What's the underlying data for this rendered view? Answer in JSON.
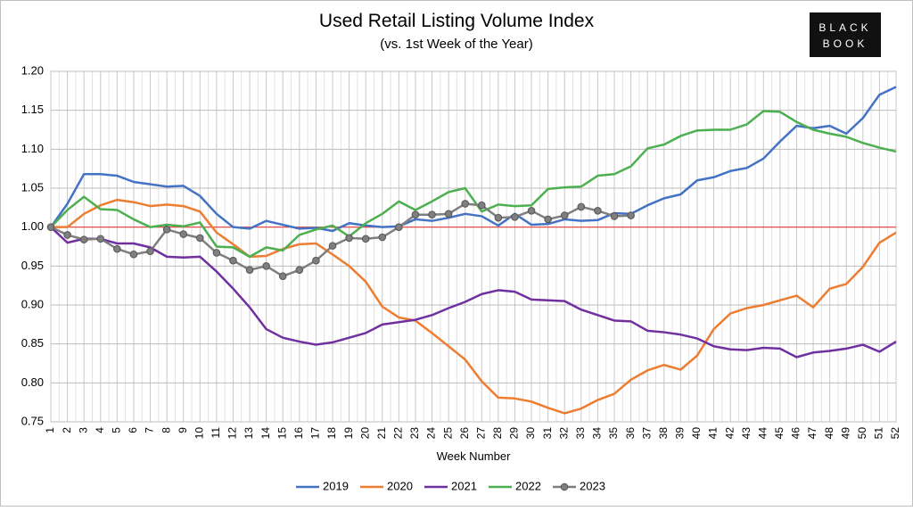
{
  "chart_data": {
    "type": "line",
    "title": "Used Retail Listing Volume Index",
    "subtitle": "(vs. 1st Week of the Year)",
    "x_label": "Week Number",
    "logo": [
      "BLACK",
      "BOOK"
    ],
    "categories": [
      "1",
      "2",
      "3",
      "4",
      "5",
      "6",
      "7",
      "8",
      "9",
      "10",
      "11",
      "12",
      "13",
      "14",
      "15",
      "16",
      "17",
      "18",
      "19",
      "20",
      "21",
      "22",
      "23",
      "24",
      "25",
      "26",
      "27",
      "28",
      "29",
      "30",
      "31",
      "32",
      "33",
      "34",
      "35",
      "36",
      "37",
      "38",
      "39",
      "40",
      "41",
      "42",
      "43",
      "44",
      "45",
      "46",
      "47",
      "48",
      "49",
      "50",
      "51",
      "52"
    ],
    "ylim": [
      0.75,
      1.2
    ],
    "yticks": [
      {
        "value": 0.75,
        "label": "0.75"
      },
      {
        "value": 0.8,
        "label": "0.80"
      },
      {
        "value": 0.85,
        "label": "0.85"
      },
      {
        "value": 0.9,
        "label": "0.90"
      },
      {
        "value": 0.95,
        "label": "0.95"
      },
      {
        "value": 1.0,
        "label": "1.00"
      },
      {
        "value": 1.05,
        "label": "1.05"
      },
      {
        "value": 1.1,
        "label": "1.10"
      },
      {
        "value": 1.15,
        "label": "1.15"
      },
      {
        "value": 1.2,
        "label": "1.20"
      }
    ],
    "grid": true,
    "reference_line": {
      "value": 1.0,
      "color": "#e8413a"
    },
    "legend": "bottom",
    "series": [
      {
        "name": "2019",
        "color": "#4472c4",
        "marker": false,
        "values": [
          1.0,
          1.03,
          1.068,
          1.068,
          1.066,
          1.058,
          1.055,
          1.052,
          1.053,
          1.04,
          1.017,
          1.0,
          0.998,
          1.008,
          1.003,
          0.998,
          0.999,
          0.995,
          1.005,
          1.002,
          1.0,
          1.001,
          1.01,
          1.008,
          1.012,
          1.017,
          1.014,
          1.002,
          1.017,
          1.003,
          1.004,
          1.01,
          1.008,
          1.009,
          1.018,
          1.017,
          1.028,
          1.037,
          1.042,
          1.06,
          1.064,
          1.072,
          1.076,
          1.088,
          1.11,
          1.13,
          1.127,
          1.13,
          1.12,
          1.14,
          1.17,
          1.18
        ]
      },
      {
        "name": "2020",
        "color": "#ed7d31",
        "marker": false,
        "values": [
          1.0,
          1.0,
          1.017,
          1.028,
          1.035,
          1.032,
          1.027,
          1.029,
          1.027,
          1.02,
          0.993,
          0.978,
          0.962,
          0.963,
          0.972,
          0.978,
          0.979,
          0.965,
          0.95,
          0.93,
          0.898,
          0.884,
          0.88,
          0.864,
          0.847,
          0.83,
          0.802,
          0.781,
          0.78,
          0.776,
          0.768,
          0.761,
          0.767,
          0.778,
          0.786,
          0.804,
          0.816,
          0.823,
          0.817,
          0.835,
          0.869,
          0.889,
          0.896,
          0.9,
          0.906,
          0.912,
          0.897,
          0.921,
          0.927,
          0.949,
          0.98,
          0.993
        ]
      },
      {
        "name": "2021",
        "color": "#7030a0",
        "marker": false,
        "values": [
          1.0,
          0.98,
          0.985,
          0.985,
          0.979,
          0.979,
          0.974,
          0.962,
          0.961,
          0.962,
          0.943,
          0.921,
          0.897,
          0.869,
          0.858,
          0.853,
          0.849,
          0.852,
          0.858,
          0.864,
          0.875,
          0.878,
          0.881,
          0.887,
          0.896,
          0.904,
          0.914,
          0.919,
          0.917,
          0.907,
          0.906,
          0.905,
          0.894,
          0.887,
          0.88,
          0.879,
          0.867,
          0.865,
          0.862,
          0.857,
          0.847,
          0.843,
          0.842,
          0.845,
          0.844,
          0.833,
          0.839,
          0.841,
          0.844,
          0.849,
          0.84,
          0.853
        ]
      },
      {
        "name": "2022",
        "color": "#4caf50",
        "marker": false,
        "values": [
          1.0,
          1.022,
          1.039,
          1.023,
          1.022,
          1.01,
          1.0,
          1.003,
          1.001,
          1.006,
          0.975,
          0.974,
          0.962,
          0.974,
          0.97,
          0.99,
          0.997,
          1.002,
          0.988,
          1.005,
          1.017,
          1.033,
          1.022,
          1.033,
          1.045,
          1.05,
          1.02,
          1.029,
          1.027,
          1.028,
          1.049,
          1.051,
          1.052,
          1.066,
          1.068,
          1.078,
          1.101,
          1.106,
          1.117,
          1.124,
          1.125,
          1.125,
          1.132,
          1.149,
          1.148,
          1.135,
          1.125,
          1.12,
          1.116,
          1.108,
          1.102,
          1.097
        ]
      },
      {
        "name": "2023",
        "color": "#7f7f7f",
        "marker": true,
        "values": [
          1.0,
          0.99,
          0.984,
          0.985,
          0.972,
          0.965,
          0.969,
          0.997,
          0.991,
          0.986,
          0.967,
          0.957,
          0.945,
          0.95,
          0.937,
          0.945,
          0.957,
          0.976,
          0.986,
          0.985,
          0.987,
          1.0,
          1.016,
          1.016,
          1.017,
          1.03,
          1.028,
          1.012,
          1.013,
          1.021,
          1.01,
          1.015,
          1.026,
          1.021,
          1.014,
          1.015,
          null,
          null,
          null,
          null,
          null,
          null,
          null,
          null,
          null,
          null,
          null,
          null,
          null,
          null,
          null,
          null
        ]
      }
    ]
  }
}
